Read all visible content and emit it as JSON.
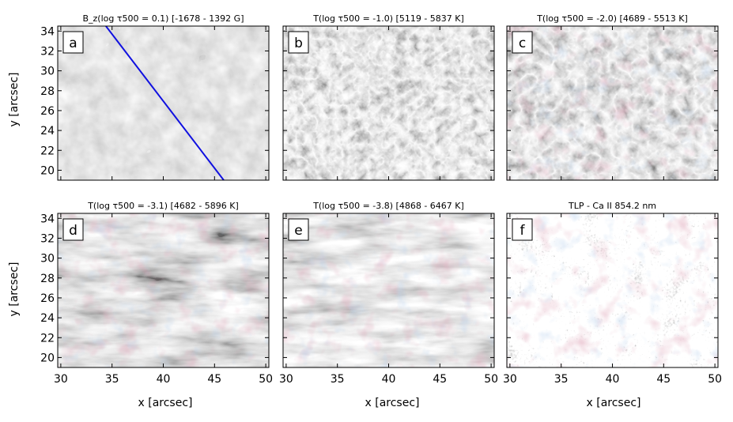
{
  "figure": {
    "xlabel": "x [arcsec]",
    "ylabel": "y [arcsec]",
    "xticks": [
      "30",
      "35",
      "40",
      "45",
      "50"
    ],
    "yticks": [
      "20",
      "22",
      "24",
      "26",
      "28",
      "30",
      "32",
      "34"
    ],
    "xlim": [
      29.7,
      50.3
    ],
    "ylim": [
      19,
      34.5
    ]
  },
  "panels": [
    {
      "id": "a",
      "title": "B_z(log τ500 = 0.1) [-1678 - 1392 G]",
      "colormap": "gray",
      "overlay_line": {
        "color": "#1010e0",
        "x": [
          34.4,
          45.9
        ],
        "y": [
          34.5,
          19
        ]
      }
    },
    {
      "id": "b",
      "title": "T(log τ500 = -1.0) [5119 - 5837 K]",
      "colormap": "gray"
    },
    {
      "id": "c",
      "title": "T(log τ500 = -2.0) [4689 - 5513 K]",
      "colormap": "gray",
      "contours": [
        "#c98a9a",
        "#8aa8c8"
      ]
    },
    {
      "id": "d",
      "title": "T(log τ500 = -3.1) [4682 - 5896 K]",
      "colormap": "gray",
      "contours": [
        "#c98a9a",
        "#8aa8c8"
      ]
    },
    {
      "id": "e",
      "title": "T(log τ500 = -3.8) [4868 - 6467 K]",
      "colormap": "gray",
      "contours": [
        "#c98a9a",
        "#8aa8c8"
      ]
    },
    {
      "id": "f",
      "title": "TLP - Ca II 854.2 nm",
      "colormap": "gray",
      "contours": [
        "#c98a9a",
        "#8aa8c8"
      ]
    }
  ]
}
